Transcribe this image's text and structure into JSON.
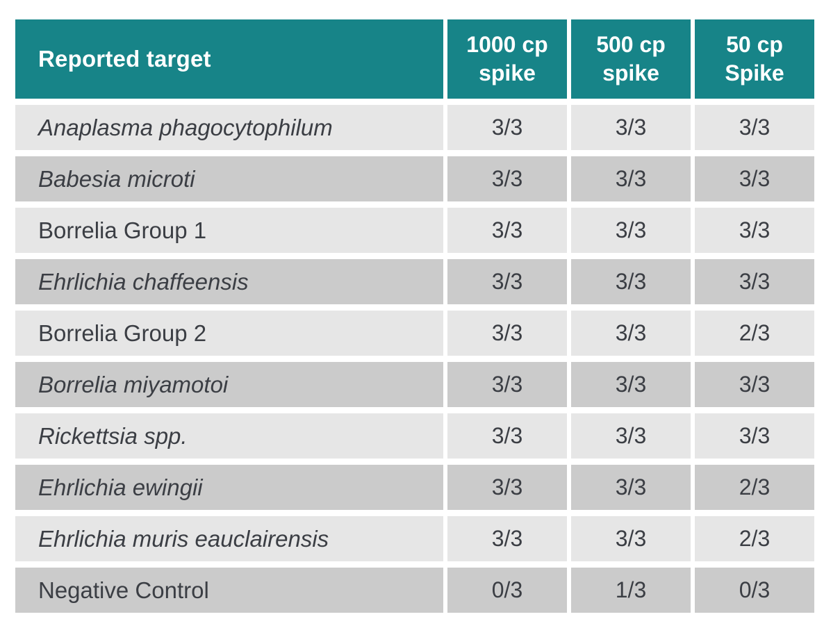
{
  "colors": {
    "header_bg": "#178488",
    "header_text": "#ffffff",
    "row_light": "#e6e6e6",
    "row_dark": "#cbcbcb",
    "body_text": "#3b3e44"
  },
  "table": {
    "columns": [
      {
        "label": "Reported target"
      },
      {
        "label": "1000 cp\nspike"
      },
      {
        "label": "500 cp\nspike"
      },
      {
        "label": "50 cp\nSpike"
      }
    ],
    "rows": [
      {
        "target": "Anaplasma phagocytophilum",
        "italic": true,
        "values": [
          "3/3",
          "3/3",
          "3/3"
        ]
      },
      {
        "target": "Babesia microti",
        "italic": true,
        "values": [
          "3/3",
          "3/3",
          "3/3"
        ]
      },
      {
        "target": "Borrelia Group 1",
        "italic": false,
        "values": [
          "3/3",
          "3/3",
          "3/3"
        ]
      },
      {
        "target": "Ehrlichia chaffeensis",
        "italic": true,
        "values": [
          "3/3",
          "3/3",
          "3/3"
        ]
      },
      {
        "target": "Borrelia Group 2",
        "italic": false,
        "values": [
          "3/3",
          "3/3",
          "2/3"
        ]
      },
      {
        "target": "Borrelia miyamotoi",
        "italic": true,
        "values": [
          "3/3",
          "3/3",
          "3/3"
        ]
      },
      {
        "target": "Rickettsia spp.",
        "italic": true,
        "values": [
          "3/3",
          "3/3",
          "3/3"
        ]
      },
      {
        "target": "Ehrlichia ewingii",
        "italic": true,
        "values": [
          "3/3",
          "3/3",
          "2/3"
        ]
      },
      {
        "target": "Ehrlichia muris eauclairensis",
        "italic": true,
        "values": [
          "3/3",
          "3/3",
          "2/3"
        ]
      },
      {
        "target": "Negative Control",
        "italic": false,
        "values": [
          "0/3",
          "1/3",
          "0/3"
        ]
      }
    ]
  }
}
